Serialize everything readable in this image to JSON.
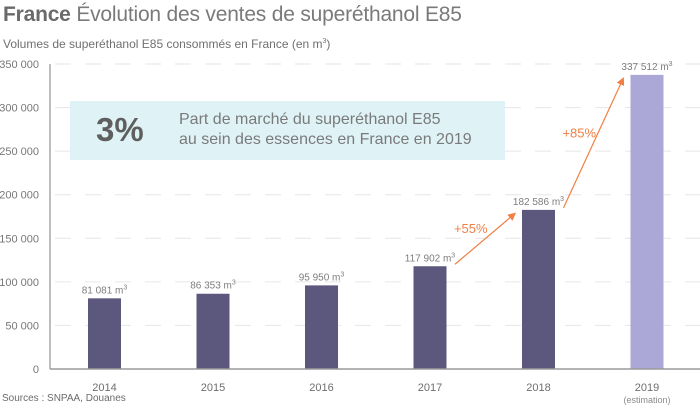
{
  "header": {
    "country": "France",
    "title": "Évolution des ventes de superéthanol E85",
    "subtitle_prefix": "Volumes de superéthanol E85 consommés en France (en m",
    "subtitle_sup": "3",
    "subtitle_suffix": ")"
  },
  "callout": {
    "value": "3%",
    "line1": "Part de marché du superéthanol E85",
    "line2": "au sein des essences en France en 2019"
  },
  "source": "Sources : SNPAA, Douanes",
  "colors": {
    "bar": "#5b577d",
    "bar_estimate": "#aba7d6",
    "arrow": "#f07f45",
    "callout_bg": "#dff3f7"
  },
  "chart_data": {
    "type": "bar",
    "title": "Évolution des ventes de superéthanol E85",
    "subtitle": "Volumes de superéthanol E85 consommés en France (en m³)",
    "xlabel": "",
    "ylabel": "m³",
    "ylim": [
      0,
      350000
    ],
    "yticks": [
      0,
      50000,
      100000,
      150000,
      200000,
      250000,
      300000,
      350000
    ],
    "ytick_labels": [
      "0",
      "50 000",
      "100 000",
      "150 000",
      "200 000",
      "250 000",
      "300 000",
      "350 000"
    ],
    "grid": true,
    "categories": [
      "2014",
      "2015",
      "2016",
      "2017",
      "2018",
      "2019"
    ],
    "category_sublabels": [
      "",
      "",
      "",
      "",
      "",
      "(estimation)"
    ],
    "values": [
      81081,
      86353,
      95950,
      117902,
      182586,
      337512
    ],
    "value_labels": [
      "81 081 m³",
      "86 353 m³",
      "95 950 m³",
      "117 902 m³",
      "182 586 m³",
      "337 512 m³"
    ],
    "estimated": [
      false,
      false,
      false,
      false,
      false,
      true
    ],
    "annotations": [
      {
        "from": "2017",
        "to": "2018",
        "text": "+55%"
      },
      {
        "from": "2018",
        "to": "2019",
        "text": "+85%"
      }
    ]
  }
}
